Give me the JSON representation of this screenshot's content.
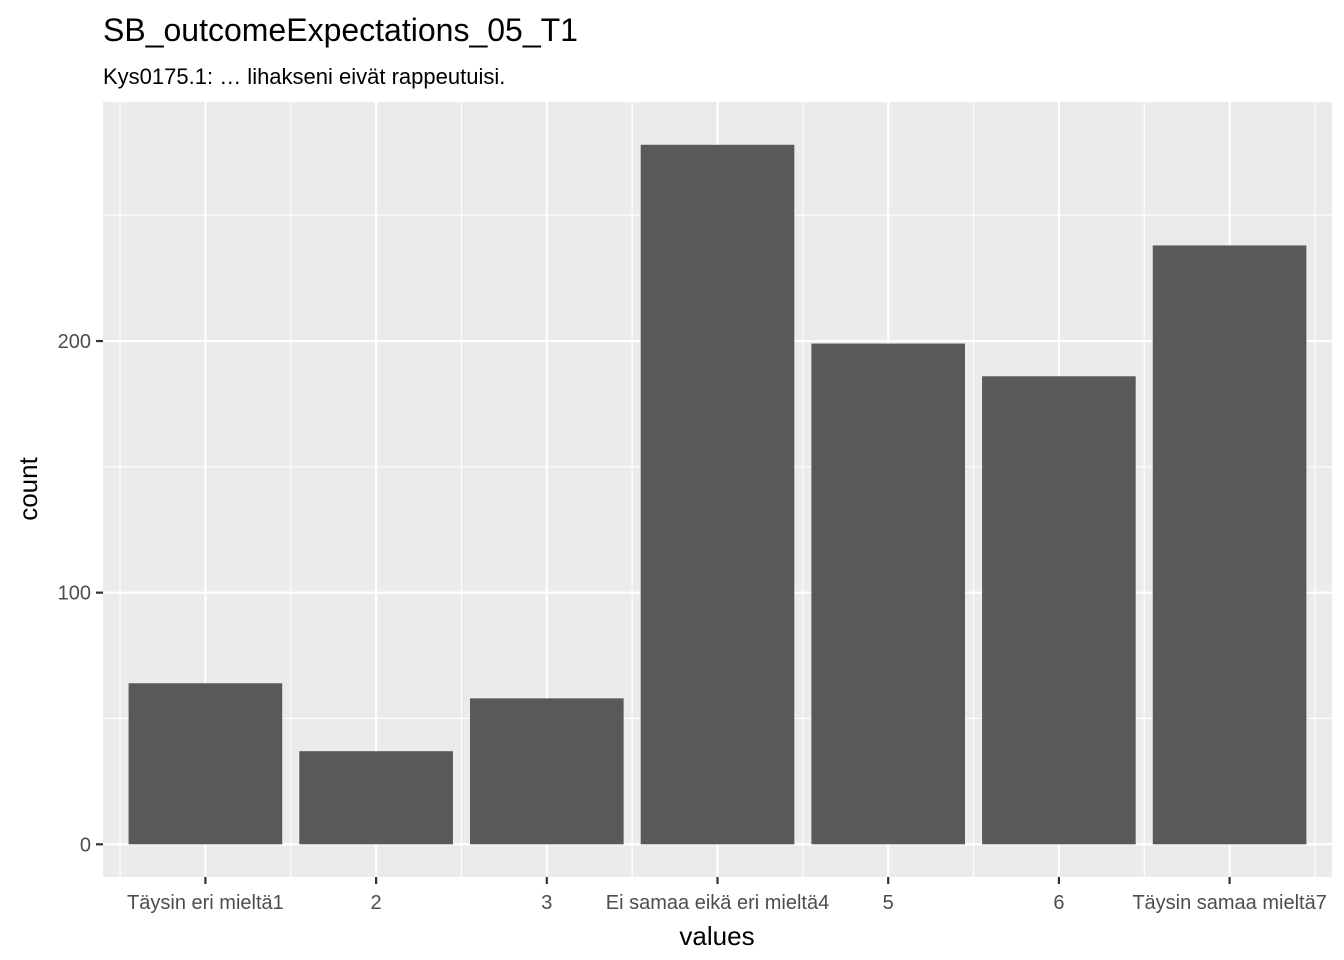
{
  "chart_data": {
    "type": "bar",
    "title": "SB_outcomeExpectations_05_T1",
    "subtitle": "Kys0175.1: … lihakseni eivät rappeutuisi.",
    "xlabel": "values",
    "ylabel": "count",
    "categories": [
      "Täysin eri mieltä1",
      "2",
      "3",
      "Ei samaa eikä eri mieltä4",
      "5",
      "6",
      "Täysin samaa mieltä7"
    ],
    "values": [
      64,
      37,
      58,
      278,
      199,
      186,
      238
    ],
    "y_ticks": [
      0,
      100,
      200
    ],
    "y_tick_labels": [
      "0",
      "100",
      "200"
    ],
    "ylim": [
      -13,
      295
    ],
    "grid": true,
    "colors": {
      "bar": "#595959",
      "panel": "#ebebeb",
      "grid": "#ffffff"
    }
  }
}
